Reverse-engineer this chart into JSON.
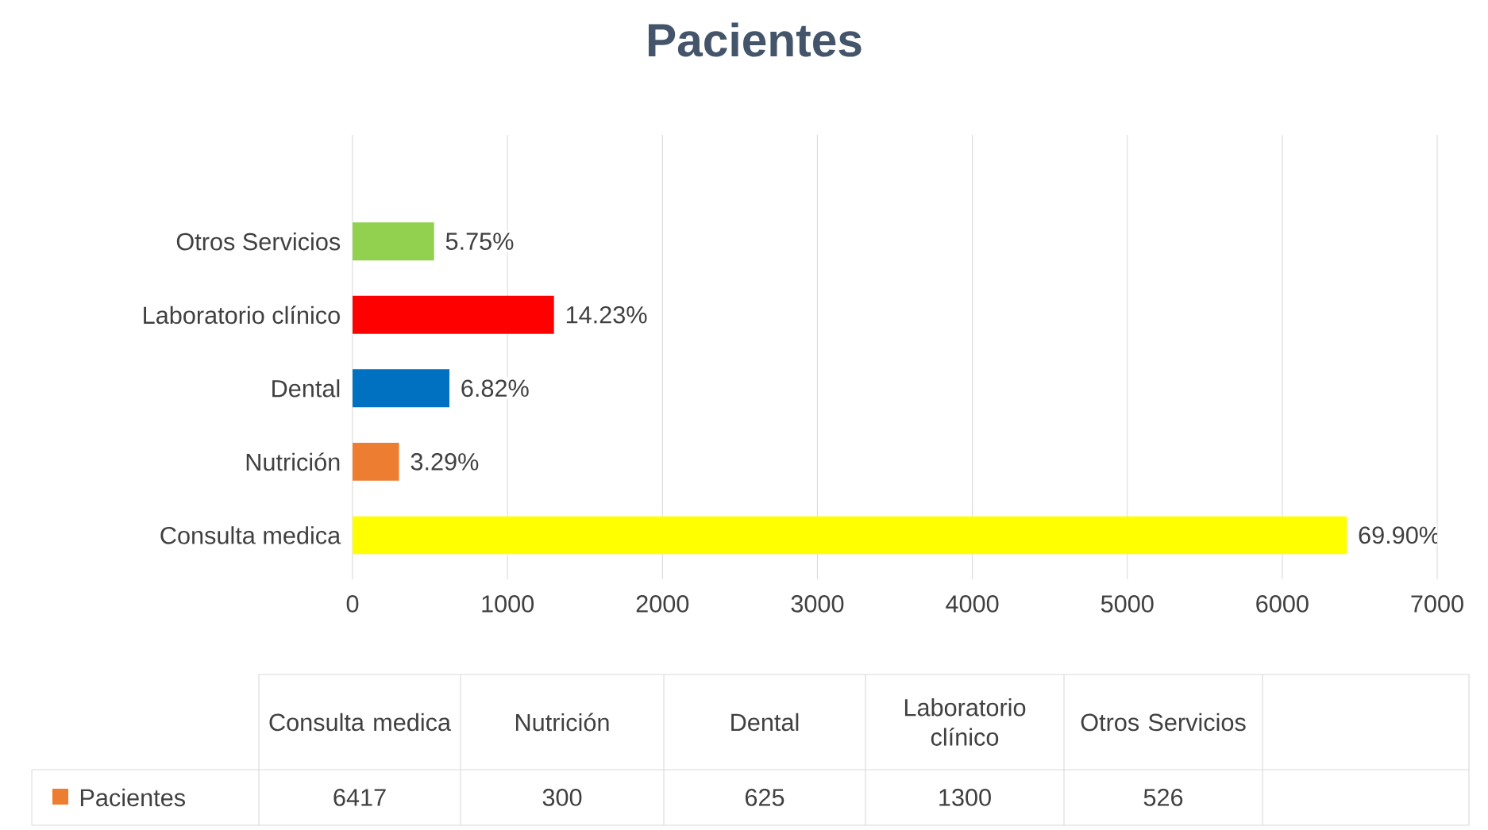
{
  "chart_data": {
    "type": "bar",
    "orientation": "horizontal",
    "title": "Pacientes",
    "categories": [
      "Otros Servicios",
      "Laboratorio clínico",
      "Dental",
      "Nutrición",
      "Consulta medica"
    ],
    "series": [
      {
        "name": "Pacientes",
        "color": "#ed7d31",
        "colors": [
          "#92d050",
          "#ff0000",
          "#0070c0",
          "#ed7d31",
          "#ffff00"
        ],
        "values": [
          526,
          1300,
          625,
          300,
          6417
        ]
      }
    ],
    "annotations": [
      {
        "text": "5.75%",
        "x": 526,
        "y": "Otros Servicios"
      },
      {
        "text": "14.23%",
        "x": 1300,
        "y": "Laboratorio clínico"
      },
      {
        "text": "6.82%",
        "x": 625,
        "y": "Dental"
      },
      {
        "text": "3.29%",
        "x": 300,
        "y": "Nutrición"
      },
      {
        "text": "69.90%",
        "x": 6417,
        "y": "Consulta medica"
      },
      "6417",
      "300",
      "625",
      "1300",
      "526"
    ],
    "xlim": [
      0,
      7000
    ],
    "xticks": [
      0,
      1000,
      2000,
      3000,
      4000,
      5000,
      6000,
      7000
    ],
    "grid": "x",
    "legend": "bottom"
  }
}
